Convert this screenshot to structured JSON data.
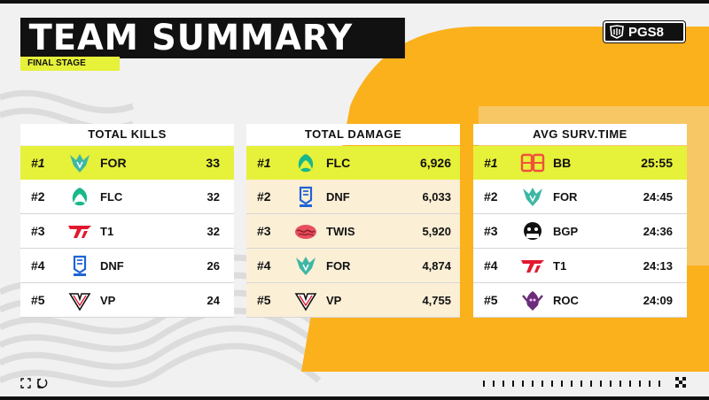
{
  "header": {
    "title": "TEAM SUMMARY",
    "subtitle": "FINAL STAGE",
    "logo_text": "PGS8"
  },
  "colors": {
    "accent": "#e6f13a",
    "orange": "#fbb11c",
    "ink": "#111111"
  },
  "panels": [
    {
      "title": "TOTAL KILLS",
      "rows": [
        {
          "rank": "#1",
          "team": "FOR",
          "value": "33",
          "icon": "for-logo-icon"
        },
        {
          "rank": "#2",
          "team": "FLC",
          "value": "32",
          "icon": "flc-logo-icon"
        },
        {
          "rank": "#3",
          "team": "T1",
          "value": "32",
          "icon": "t1-logo-icon"
        },
        {
          "rank": "#4",
          "team": "DNF",
          "value": "26",
          "icon": "dnf-logo-icon"
        },
        {
          "rank": "#5",
          "team": "VP",
          "value": "24",
          "icon": "vp-logo-icon"
        }
      ]
    },
    {
      "title": "TOTAL DAMAGE",
      "rows": [
        {
          "rank": "#1",
          "team": "FLC",
          "value": "6,926",
          "icon": "flc-logo-icon"
        },
        {
          "rank": "#2",
          "team": "DNF",
          "value": "6,033",
          "icon": "dnf-logo-icon"
        },
        {
          "rank": "#3",
          "team": "TWIS",
          "value": "5,920",
          "icon": "twis-logo-icon"
        },
        {
          "rank": "#4",
          "team": "FOR",
          "value": "4,874",
          "icon": "for-logo-icon"
        },
        {
          "rank": "#5",
          "team": "VP",
          "value": "4,755",
          "icon": "vp-logo-icon"
        }
      ]
    },
    {
      "title": "AVG SURV.TIME",
      "rows": [
        {
          "rank": "#1",
          "team": "BB",
          "value": "25:55",
          "icon": "bb-logo-icon"
        },
        {
          "rank": "#2",
          "team": "FOR",
          "value": "24:45",
          "icon": "for-logo-icon"
        },
        {
          "rank": "#3",
          "team": "BGP",
          "value": "24:36",
          "icon": "bgp-logo-icon"
        },
        {
          "rank": "#4",
          "team": "T1",
          "value": "24:13",
          "icon": "t1-logo-icon"
        },
        {
          "rank": "#5",
          "team": "ROC",
          "value": "24:09",
          "icon": "roc-logo-icon"
        }
      ]
    }
  ]
}
